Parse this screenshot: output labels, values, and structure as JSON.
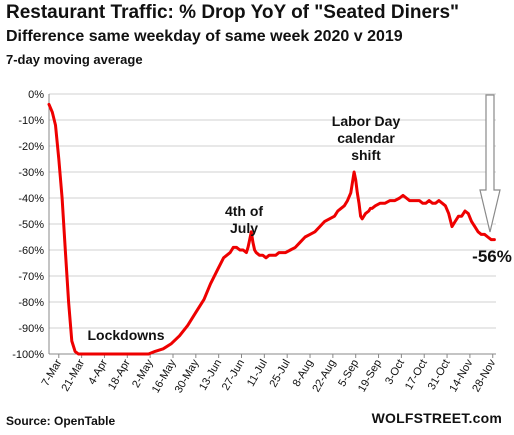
{
  "chart_data": {
    "type": "line",
    "title": "Restaurant Traffic: % Drop YoY of \"Seated Diners\"",
    "subtitle": "Difference same weekday of same week 2020 v 2019",
    "subtitle2": "7-day moving average",
    "source": "Source: OpenTable",
    "brand": "WOLFSTREET.com",
    "ylim": [
      -100,
      0
    ],
    "yticks": [
      "0%",
      "-10%",
      "-20%",
      "-30%",
      "-40%",
      "-50%",
      "-60%",
      "-70%",
      "-80%",
      "-90%",
      "-100%"
    ],
    "xticks": [
      "7-Mar",
      "21-Mar",
      "4-Apr",
      "18-Apr",
      "2-May",
      "16-May",
      "30-May",
      "13-Jun",
      "27-Jun",
      "11-Jul",
      "25-Jul",
      "8-Aug",
      "22-Aug",
      "5-Sep",
      "19-Sep",
      "3-Oct",
      "17-Oct",
      "31-Oct",
      "14-Nov",
      "28-Nov"
    ],
    "x_start": "2020-03-01",
    "line_color": "#ee0000",
    "series": [
      {
        "x": [
          "2020-03-01",
          "2020-03-03",
          "2020-03-05",
          "2020-03-07",
          "2020-03-09",
          "2020-03-11",
          "2020-03-13",
          "2020-03-15",
          "2020-03-17",
          "2020-03-19",
          "2020-03-21",
          "2020-03-23",
          "2020-03-25",
          "2020-04-01",
          "2020-04-15",
          "2020-05-01",
          "2020-05-05",
          "2020-05-10",
          "2020-05-15",
          "2020-05-20",
          "2020-05-25",
          "2020-05-30",
          "2020-06-04",
          "2020-06-08",
          "2020-06-12",
          "2020-06-16",
          "2020-06-20",
          "2020-06-22",
          "2020-06-24",
          "2020-06-26",
          "2020-06-28",
          "2020-06-30",
          "2020-07-01",
          "2020-07-02",
          "2020-07-03",
          "2020-07-04",
          "2020-07-05",
          "2020-07-06",
          "2020-07-08",
          "2020-07-10",
          "2020-07-12",
          "2020-07-14",
          "2020-07-16",
          "2020-07-18",
          "2020-07-20",
          "2020-07-22",
          "2020-07-24",
          "2020-07-27",
          "2020-07-30",
          "2020-08-02",
          "2020-08-05",
          "2020-08-08",
          "2020-08-11",
          "2020-08-14",
          "2020-08-17",
          "2020-08-20",
          "2020-08-23",
          "2020-08-25",
          "2020-08-27",
          "2020-08-29",
          "2020-08-31",
          "2020-09-02",
          "2020-09-04",
          "2020-09-05",
          "2020-09-06",
          "2020-09-07",
          "2020-09-08",
          "2020-09-09",
          "2020-09-11",
          "2020-09-13",
          "2020-09-14",
          "2020-09-15",
          "2020-09-17",
          "2020-09-20",
          "2020-09-23",
          "2020-09-26",
          "2020-09-29",
          "2020-10-02",
          "2020-10-04",
          "2020-10-06",
          "2020-10-08",
          "2020-10-10",
          "2020-10-12",
          "2020-10-14",
          "2020-10-16",
          "2020-10-18",
          "2020-10-20",
          "2020-10-22",
          "2020-10-24",
          "2020-10-26",
          "2020-10-28",
          "2020-10-30",
          "2020-11-01",
          "2020-11-03",
          "2020-11-05",
          "2020-11-07",
          "2020-11-09",
          "2020-11-11",
          "2020-11-13",
          "2020-11-15",
          "2020-11-17",
          "2020-11-19",
          "2020-11-21",
          "2020-11-23",
          "2020-11-25",
          "2020-11-27",
          "2020-11-29"
        ],
        "y": [
          -4,
          -7,
          -12,
          -25,
          -40,
          -60,
          -80,
          -95,
          -99,
          -100,
          -100,
          -100,
          -100,
          -100,
          -100,
          -100,
          -99,
          -98,
          -96,
          -93,
          -89,
          -84,
          -79,
          -73,
          -68,
          -63,
          -61,
          -59,
          -59,
          -60,
          -60,
          -61,
          -59,
          -56,
          -53,
          -57,
          -60,
          -61,
          -62,
          -62,
          -63,
          -62,
          -62,
          -62,
          -61,
          -61,
          -61,
          -60,
          -59,
          -57,
          -55,
          -54,
          -53,
          -51,
          -49,
          -48,
          -47,
          -45,
          -44,
          -43,
          -41,
          -38,
          -30,
          -33,
          -38,
          -42,
          -47,
          -48,
          -46,
          -45,
          -44,
          -44,
          -43,
          -42,
          -42,
          -41,
          -41,
          -40,
          -39,
          -40,
          -41,
          -41,
          -41,
          -41,
          -42,
          -42,
          -41,
          -42,
          -42,
          -41,
          -42,
          -43,
          -46,
          -51,
          -49,
          -47,
          -47,
          -45,
          -46,
          -49,
          -51,
          -53,
          -54,
          -54,
          -55,
          -56,
          -56
        ]
      }
    ],
    "annotations": [
      {
        "lines": [
          "Lockdowns"
        ]
      },
      {
        "lines": [
          "4th of",
          "July"
        ]
      },
      {
        "lines": [
          "Labor Day",
          "calendar",
          "shift"
        ]
      },
      {
        "lines": [
          "-56%"
        ],
        "color": "#ee0000"
      }
    ]
  }
}
